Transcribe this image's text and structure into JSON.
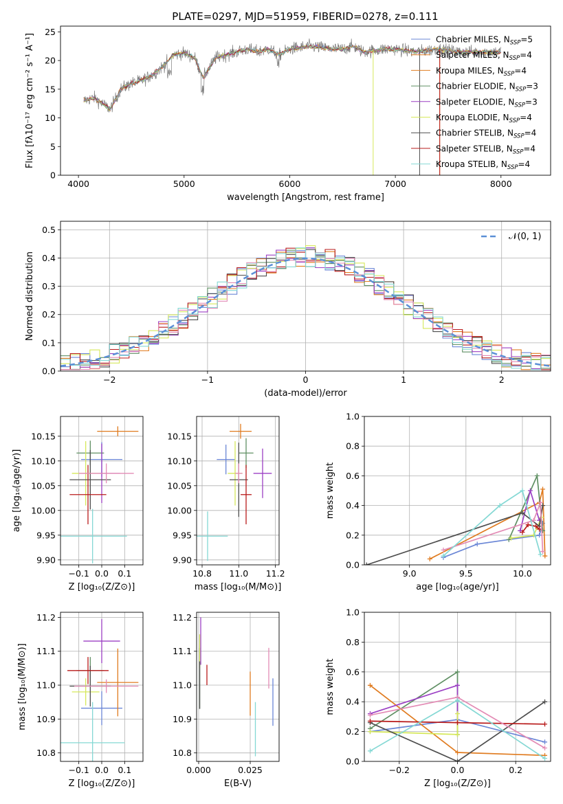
{
  "colors": {
    "blue": "#6a86d6",
    "orange": "#e07b1f",
    "green": "#5f8f63",
    "purple": "#9b3fc4",
    "yellow": "#d6e85a",
    "dark": "#4d4d4d",
    "red": "#b81a1a",
    "pink": "#e38bb5",
    "cyan": "#84d8d4",
    "gaussian": "#5b8fd6"
  },
  "chart_data": [
    {
      "id": "spectrum",
      "type": "line",
      "title": "PLATE=0297, MJD=51959, FIBERID=0278, z=0.111",
      "xlabel": "wavelength [Angstrom, rest frame]",
      "ylabel": "Flux [fλ10⁻¹⁷ erg cm⁻² s⁻¹ A⁻¹]",
      "xlim": [
        3830,
        8470
      ],
      "ylim": [
        0,
        26
      ],
      "xticks": [
        "4000",
        "5000",
        "6000",
        "7000",
        "8000"
      ],
      "yticks": [
        "0",
        "5",
        "10",
        "15",
        "20",
        "25"
      ],
      "envelope": [
        [
          4050,
          13
        ],
        [
          4150,
          13.5
        ],
        [
          4300,
          11.5
        ],
        [
          4400,
          15
        ],
        [
          4500,
          16
        ],
        [
          4600,
          16.5
        ],
        [
          4700,
          17.5
        ],
        [
          4800,
          19
        ],
        [
          4900,
          21
        ],
        [
          5000,
          21.3
        ],
        [
          5100,
          20.5
        ],
        [
          5180,
          17
        ],
        [
          5300,
          20.5
        ],
        [
          5400,
          21
        ],
        [
          5500,
          21.5
        ],
        [
          5600,
          22
        ],
        [
          5700,
          21.5
        ],
        [
          5800,
          22
        ],
        [
          5900,
          21
        ],
        [
          6000,
          22
        ],
        [
          6200,
          22.5
        ],
        [
          6400,
          22
        ],
        [
          6500,
          22
        ],
        [
          6600,
          22.5
        ],
        [
          6700,
          21.5
        ],
        [
          6900,
          22
        ],
        [
          7000,
          22
        ],
        [
          7200,
          21.5
        ],
        [
          7400,
          22
        ],
        [
          7600,
          21.5
        ],
        [
          7800,
          21.5
        ],
        [
          7900,
          21.5
        ],
        [
          8000,
          21.5
        ]
      ],
      "legend_position": "upper right",
      "legend": [
        {
          "label": "Chabrier MILES, N",
          "sub": "SSP",
          "suffix": "=5",
          "color": "blue"
        },
        {
          "label": "Salpeter MILES, N",
          "sub": "SSP",
          "suffix": "=4",
          "color": "orange"
        },
        {
          "label": "Kroupa MILES, N",
          "sub": "SSP",
          "suffix": "=4",
          "color": "orange"
        },
        {
          "label": "Chabrier ELODIE, N",
          "sub": "SSP",
          "suffix": "=3",
          "color": "green"
        },
        {
          "label": "Salpeter ELODIE, N",
          "sub": "SSP",
          "suffix": "=3",
          "color": "purple"
        },
        {
          "label": "Kroupa ELODIE, N",
          "sub": "SSP",
          "suffix": "=4",
          "color": "yellow"
        },
        {
          "label": "Chabrier STELIB, N",
          "sub": "SSP",
          "suffix": "=4",
          "color": "dark"
        },
        {
          "label": "Salpeter STELIB, N",
          "sub": "SSP",
          "suffix": "=4",
          "color": "red"
        },
        {
          "label": "Kroupa STELIB, N",
          "sub": "SSP",
          "suffix": "=4",
          "color": "cyan"
        }
      ]
    },
    {
      "id": "residuals",
      "type": "bar",
      "xlabel": "(data-model)/error",
      "ylabel": "Normed distribution",
      "xlim": [
        -2.5,
        2.5
      ],
      "ylim": [
        0,
        0.53
      ],
      "xticks": [
        "−2",
        "−1",
        "0",
        "1",
        "2"
      ],
      "yticks": [
        "0.0",
        "0.1",
        "0.2",
        "0.3",
        "0.4",
        "0.5"
      ],
      "grid": true,
      "legend_label": "𝒩(0, 1)",
      "legend_position": "upper right"
    },
    {
      "id": "age-vs-Z",
      "type": "scatter",
      "xlabel": "Z [log₁₀(Z/Z⊙)]",
      "ylabel": "age  [log₁₀(age/yr)]",
      "xlim": [
        -0.18,
        0.18
      ],
      "ylim": [
        9.89,
        10.19
      ],
      "xticks": [
        "−0.1",
        "0.0",
        "0.1"
      ],
      "yticks": [
        "9.90",
        "9.95",
        "10.00",
        "10.05",
        "10.10",
        "10.15"
      ],
      "grid": true,
      "points": [
        {
          "x": 0.0,
          "y": 10.103,
          "xerr": 0.09,
          "yerr": 0.035,
          "color": "blue"
        },
        {
          "x": 0.07,
          "y": 10.16,
          "xerr": 0.09,
          "yerr": 0.01,
          "color": "orange"
        },
        {
          "x": -0.05,
          "y": 10.116,
          "xerr": 0.06,
          "yerr": 0.025,
          "color": "green"
        },
        {
          "x": 0.0,
          "y": 10.075,
          "xerr": 0.08,
          "yerr": 0.06,
          "color": "purple"
        },
        {
          "x": -0.07,
          "y": 10.075,
          "xerr": 0.06,
          "yerr": 0.065,
          "color": "yellow"
        },
        {
          "x": -0.05,
          "y": 10.062,
          "xerr": 0.09,
          "yerr": 0.06,
          "color": "dark"
        },
        {
          "x": -0.06,
          "y": 10.032,
          "xerr": 0.08,
          "yerr": 0.06,
          "color": "red"
        },
        {
          "x": 0.02,
          "y": 10.075,
          "xerr": 0.12,
          "yerr": 0.02,
          "color": "pink"
        },
        {
          "x": -0.04,
          "y": 9.948,
          "xerr": 0.15,
          "yerr": 0.055,
          "color": "cyan"
        }
      ]
    },
    {
      "id": "age-vs-mass",
      "type": "scatter",
      "xlabel": "mass [log₁₀(M/M⊙)]",
      "ylabel": "",
      "xlim": [
        10.77,
        11.22
      ],
      "ylim": [
        9.89,
        10.19
      ],
      "xticks": [
        "10.8",
        "11.0",
        "11.2"
      ],
      "yticks": [
        "9.90",
        "9.95",
        "10.00",
        "10.05",
        "10.10",
        "10.15"
      ],
      "grid": true,
      "points": [
        {
          "x": 10.93,
          "y": 10.103,
          "xerr": 0.05,
          "yerr": 0.03,
          "color": "blue"
        },
        {
          "x": 11.01,
          "y": 10.16,
          "xerr": 0.06,
          "yerr": 0.015,
          "color": "orange"
        },
        {
          "x": 11.04,
          "y": 10.116,
          "xerr": 0.04,
          "yerr": 0.03,
          "color": "green"
        },
        {
          "x": 11.13,
          "y": 10.075,
          "xerr": 0.05,
          "yerr": 0.05,
          "color": "purple"
        },
        {
          "x": 10.98,
          "y": 10.075,
          "xerr": 0.04,
          "yerr": 0.065,
          "color": "yellow"
        },
        {
          "x": 11.0,
          "y": 10.062,
          "xerr": 0.05,
          "yerr": 0.075,
          "color": "dark"
        },
        {
          "x": 11.04,
          "y": 10.032,
          "xerr": 0.03,
          "yerr": 0.06,
          "color": "red"
        },
        {
          "x": 11.0,
          "y": 10.075,
          "xerr": 0.02,
          "yerr": 0.02,
          "color": "pink"
        },
        {
          "x": 10.83,
          "y": 9.948,
          "xerr": 0.11,
          "yerr": 0.05,
          "color": "cyan"
        }
      ]
    },
    {
      "id": "weight-vs-age",
      "type": "line",
      "xlabel": "age  [log₁₀(age/yr)]",
      "ylabel": "mass weight",
      "xlim": [
        8.6,
        10.25
      ],
      "ylim": [
        0,
        1
      ],
      "xticks": [
        "9.0",
        "9.5",
        "10.0"
      ],
      "yticks": [
        "0.0",
        "0.2",
        "0.4",
        "0.6",
        "0.8",
        "1.0"
      ],
      "grid": true,
      "series": [
        {
          "color": "blue",
          "x": [
            9.3,
            9.6,
            10.15,
            10.18
          ],
          "y": [
            0.05,
            0.14,
            0.2,
            0.28
          ]
        },
        {
          "color": "orange",
          "x": [
            9.18,
            10.15,
            10.18,
            10.2
          ],
          "y": [
            0.04,
            0.42,
            0.51,
            0.06
          ]
        },
        {
          "color": "green",
          "x": [
            9.88,
            10.13,
            10.18
          ],
          "y": [
            0.17,
            0.6,
            0.23
          ]
        },
        {
          "color": "purple",
          "x": [
            9.98,
            10.07,
            10.15
          ],
          "y": [
            0.23,
            0.5,
            0.3
          ]
        },
        {
          "color": "yellow",
          "x": [
            9.9,
            10.1,
            10.17
          ],
          "y": [
            0.18,
            0.2,
            0.32
          ]
        },
        {
          "color": "dark",
          "x": [
            8.62,
            10.0,
            10.15,
            10.18
          ],
          "y": [
            0.0,
            0.35,
            0.26,
            0.4
          ]
        },
        {
          "color": "red",
          "x": [
            10.0,
            10.05,
            10.12,
            10.15
          ],
          "y": [
            0.22,
            0.27,
            0.26,
            0.24
          ]
        },
        {
          "color": "pink",
          "x": [
            9.3,
            10.1,
            10.16,
            10.18
          ],
          "y": [
            0.1,
            0.3,
            0.42,
            0.09
          ]
        },
        {
          "color": "cyan",
          "x": [
            9.3,
            9.8,
            10.0,
            10.16
          ],
          "y": [
            0.06,
            0.4,
            0.5,
            0.07
          ]
        }
      ]
    },
    {
      "id": "mass-vs-Z",
      "type": "scatter",
      "xlabel": "Z [log₁₀(Z/Z⊙)]",
      "ylabel": "mass [log₁₀(M/M⊙)]",
      "xlim": [
        -0.18,
        0.18
      ],
      "ylim": [
        10.775,
        11.215
      ],
      "xticks": [
        "−0.1",
        "0.0",
        "0.1"
      ],
      "yticks": [
        "10.8",
        "10.9",
        "11.0",
        "11.1",
        "11.2"
      ],
      "grid": true,
      "points": [
        {
          "x": 0.0,
          "y": 10.932,
          "xerr": 0.09,
          "yerr": 0.05,
          "color": "blue"
        },
        {
          "x": 0.07,
          "y": 11.008,
          "xerr": 0.09,
          "yerr": 0.1,
          "color": "orange"
        },
        {
          "x": -0.05,
          "y": 11.043,
          "xerr": 0.06,
          "yerr": 0.04,
          "color": "green"
        },
        {
          "x": 0.0,
          "y": 11.13,
          "xerr": 0.08,
          "yerr": 0.065,
          "color": "purple"
        },
        {
          "x": -0.07,
          "y": 10.98,
          "xerr": 0.06,
          "yerr": 0.04,
          "color": "yellow"
        },
        {
          "x": -0.05,
          "y": 10.997,
          "xerr": 0.09,
          "yerr": 0.06,
          "color": "dark"
        },
        {
          "x": -0.06,
          "y": 11.043,
          "xerr": 0.09,
          "yerr": 0.04,
          "color": "red"
        },
        {
          "x": 0.02,
          "y": 10.997,
          "xerr": 0.14,
          "yerr": 0.02,
          "color": "pink"
        },
        {
          "x": -0.04,
          "y": 10.83,
          "xerr": 0.14,
          "yerr": 0.12,
          "color": "cyan"
        }
      ]
    },
    {
      "id": "mass-vs-ebv",
      "type": "scatter",
      "xlabel": "E(B-V)",
      "ylabel": "",
      "xlim": [
        -0.001,
        0.039
      ],
      "ylim": [
        10.775,
        11.215
      ],
      "xticks": [
        "0.000",
        "0.025"
      ],
      "yticks": [
        "10.8",
        "10.9",
        "11.0",
        "11.1",
        "11.2"
      ],
      "grid": true,
      "points": [
        {
          "x": 0.036,
          "y": 10.95,
          "xerr": 0,
          "yerr": 0.07,
          "color": "blue"
        },
        {
          "x": 0.025,
          "y": 10.975,
          "xerr": 0,
          "yerr": 0.065,
          "color": "orange"
        },
        {
          "x": 0.0005,
          "y": 11.02,
          "xerr": 0,
          "yerr": 0.09,
          "color": "green"
        },
        {
          "x": 0.001,
          "y": 11.13,
          "xerr": 0,
          "yerr": 0.07,
          "color": "purple"
        },
        {
          "x": 0.0005,
          "y": 11.1,
          "xerr": 0,
          "yerr": 0.05,
          "color": "yellow"
        },
        {
          "x": 0.0005,
          "y": 11.0,
          "xerr": 0,
          "yerr": 0.07,
          "color": "dark"
        },
        {
          "x": 0.004,
          "y": 11.03,
          "xerr": 0,
          "yerr": 0.03,
          "color": "red"
        },
        {
          "x": 0.034,
          "y": 11.05,
          "xerr": 0,
          "yerr": 0.06,
          "color": "pink"
        },
        {
          "x": 0.0275,
          "y": 10.87,
          "xerr": 0,
          "yerr": 0.08,
          "color": "cyan"
        }
      ]
    },
    {
      "id": "weight-vs-Z",
      "type": "line",
      "xlabel": "Z [log₁₀(Z/Z⊙)]",
      "ylabel": "mass weight",
      "xlim": [
        -0.32,
        0.32
      ],
      "ylim": [
        0,
        1
      ],
      "xticks": [
        "−0.2",
        "0.0",
        "0.2"
      ],
      "yticks": [
        "0.0",
        "0.2",
        "0.4",
        "0.6",
        "0.8",
        "1.0"
      ],
      "grid": true,
      "series": [
        {
          "color": "blue",
          "x": [
            -0.3,
            0.0,
            0.3
          ],
          "y": [
            0.2,
            0.28,
            0.13
          ]
        },
        {
          "color": "orange",
          "x": [
            -0.3,
            0.0,
            0.3
          ],
          "y": [
            0.51,
            0.06,
            0.04
          ]
        },
        {
          "color": "green",
          "x": [
            -0.3,
            0.0,
            0.0
          ],
          "y": [
            0.22,
            0.6,
            0.18
          ]
        },
        {
          "color": "purple",
          "x": [
            -0.3,
            0.0,
            0.0
          ],
          "y": [
            0.32,
            0.51,
            0.26
          ]
        },
        {
          "color": "yellow",
          "x": [
            -0.3,
            0.0,
            0.0
          ],
          "y": [
            0.2,
            0.18,
            0.32
          ]
        },
        {
          "color": "dark",
          "x": [
            -0.3,
            0.0,
            0.3
          ],
          "y": [
            0.26,
            0.0,
            0.4
          ]
        },
        {
          "color": "red",
          "x": [
            -0.3,
            0.0,
            0.3
          ],
          "y": [
            0.27,
            0.26,
            0.25
          ]
        },
        {
          "color": "pink",
          "x": [
            -0.3,
            0.0,
            0.3
          ],
          "y": [
            0.31,
            0.43,
            0.09
          ]
        },
        {
          "color": "cyan",
          "x": [
            -0.3,
            0.0,
            0.3
          ],
          "y": [
            0.07,
            0.41,
            0.02
          ]
        }
      ]
    }
  ]
}
